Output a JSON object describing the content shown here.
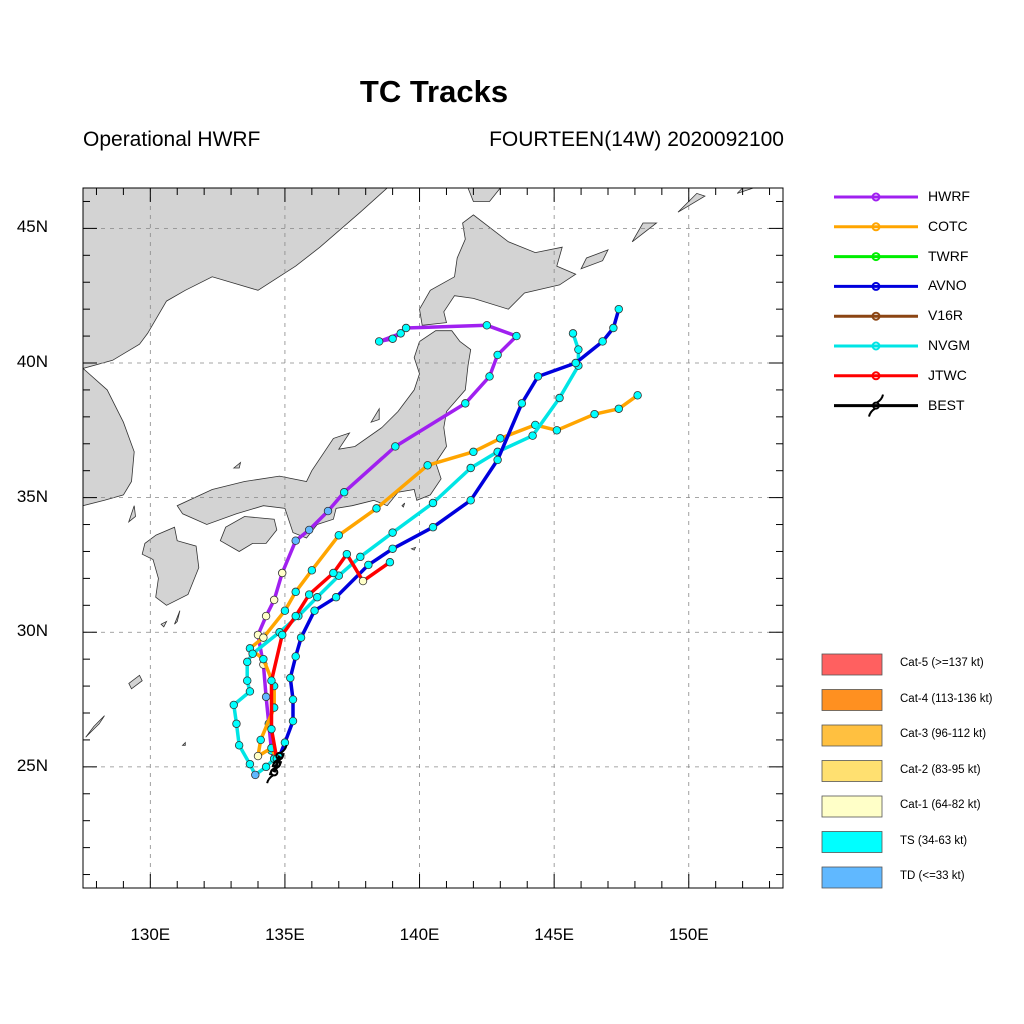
{
  "title": "TC Tracks",
  "subtitle_left": "Operational HWRF",
  "subtitle_right": "FOURTEEN(14W) 2020092100",
  "map": {
    "lon_range": [
      127.5,
      153.5
    ],
    "lat_range": [
      20.5,
      46.5
    ],
    "gridlines": "dashed",
    "x_ticks": [
      {
        "value": 130,
        "label": "130E"
      },
      {
        "value": 135,
        "label": "135E"
      },
      {
        "value": 140,
        "label": "140E"
      },
      {
        "value": 145,
        "label": "145E"
      },
      {
        "value": 150,
        "label": "150E"
      }
    ],
    "y_ticks": [
      {
        "value": 25,
        "label": "25N"
      },
      {
        "value": 30,
        "label": "30N"
      },
      {
        "value": 35,
        "label": "35N"
      },
      {
        "value": 40,
        "label": "40N"
      },
      {
        "value": 45,
        "label": "45N"
      }
    ],
    "land_color": "#d3d3d3",
    "ocean_color": "#ffffff"
  },
  "legend_models": [
    {
      "name": "HWRF",
      "color": "#a020f0"
    },
    {
      "name": "COTC",
      "color": "#ffa500"
    },
    {
      "name": "TWRF",
      "color": "#00ee00"
    },
    {
      "name": "AVNO",
      "color": "#0000dd"
    },
    {
      "name": "V16R",
      "color": "#8b4513"
    },
    {
      "name": "NVGM",
      "color": "#00e5e5"
    },
    {
      "name": "JTWC",
      "color": "#ff0000"
    },
    {
      "name": "BEST",
      "color": "#000000",
      "symbol": "tropical-cyclone-icon"
    }
  ],
  "legend_categories": [
    {
      "label": "Cat-5 (>=137 kt)",
      "color": "#ff6060"
    },
    {
      "label": "Cat-4 (113-136 kt)",
      "color": "#ff9020"
    },
    {
      "label": "Cat-3 (96-112 kt)",
      "color": "#ffc040"
    },
    {
      "label": "Cat-2 (83-95 kt)",
      "color": "#ffe070"
    },
    {
      "label": "Cat-1 (64-82 kt)",
      "color": "#ffffc8"
    },
    {
      "label": "TS (34-63 kt)",
      "color": "#00ffff"
    },
    {
      "label": "TD (<=33 kt)",
      "color": "#60b8ff"
    }
  ],
  "chart_data": {
    "type": "track-map",
    "title": "TC Tracks",
    "tracks": [
      {
        "model": "HWRF",
        "color": "#a020f0",
        "points": [
          [
            134.6,
            25.3
          ],
          [
            134.5,
            25.6
          ],
          [
            134.4,
            26.6
          ],
          [
            134.3,
            27.6
          ],
          [
            134.2,
            28.8
          ],
          [
            134.0,
            29.9
          ],
          [
            134.3,
            30.6
          ],
          [
            134.6,
            31.2
          ],
          [
            134.9,
            32.2
          ],
          [
            135.4,
            33.4
          ],
          [
            135.9,
            33.8
          ],
          [
            136.6,
            34.5
          ],
          [
            137.2,
            35.2
          ],
          [
            139.1,
            36.9
          ],
          [
            141.7,
            38.5
          ],
          [
            142.6,
            39.5
          ],
          [
            142.9,
            40.3
          ],
          [
            143.6,
            41.0
          ],
          [
            142.5,
            41.4
          ],
          [
            139.5,
            41.3
          ],
          [
            139.0,
            40.9
          ],
          [
            138.5,
            40.8
          ],
          [
            139.3,
            41.1
          ]
        ],
        "cats": [
          "TS",
          "TS",
          "TS",
          "TD",
          "Cat-1",
          "Cat-1",
          "Cat-1",
          "Cat-1",
          "Cat-1",
          "TD",
          "TD",
          "TD",
          "TS",
          "TS",
          "TS",
          "TS",
          "TS",
          "TS",
          "TS",
          "TS",
          "TS",
          "TS",
          "TS"
        ]
      },
      {
        "model": "COTC",
        "color": "#ffa500",
        "points": [
          [
            134.7,
            25.3
          ],
          [
            134.5,
            25.7
          ],
          [
            134.0,
            25.4
          ],
          [
            134.1,
            26.0
          ],
          [
            134.6,
            27.2
          ],
          [
            134.6,
            28.0
          ],
          [
            134.2,
            29.0
          ],
          [
            133.7,
            29.4
          ],
          [
            134.2,
            29.8
          ],
          [
            135.0,
            30.8
          ],
          [
            135.4,
            31.5
          ],
          [
            136.0,
            32.3
          ],
          [
            137.0,
            33.6
          ],
          [
            138.4,
            34.6
          ],
          [
            140.3,
            36.2
          ],
          [
            142.0,
            36.7
          ],
          [
            143.0,
            37.2
          ],
          [
            144.3,
            37.7
          ],
          [
            145.1,
            37.5
          ],
          [
            146.5,
            38.1
          ],
          [
            147.4,
            38.3
          ],
          [
            148.1,
            38.8
          ]
        ],
        "cats": [
          "TS",
          "TS",
          "Cat-1",
          "TS",
          "TS",
          "TS",
          "TS",
          "TS",
          "Cat-1",
          "TS",
          "TS",
          "TS",
          "TS",
          "TS",
          "TS",
          "TS",
          "TS",
          "TS",
          "TS",
          "TS",
          "TS",
          "TS"
        ]
      },
      {
        "model": "NVGM",
        "color": "#00e5e5",
        "points": [
          [
            134.6,
            25.3
          ],
          [
            134.3,
            25.0
          ],
          [
            133.9,
            24.7
          ],
          [
            133.7,
            25.1
          ],
          [
            133.3,
            25.8
          ],
          [
            133.2,
            26.6
          ],
          [
            133.1,
            27.3
          ],
          [
            133.7,
            27.8
          ],
          [
            133.6,
            28.2
          ],
          [
            133.6,
            28.9
          ],
          [
            133.8,
            29.2
          ],
          [
            134.8,
            30.0
          ],
          [
            135.5,
            30.6
          ],
          [
            136.2,
            31.3
          ],
          [
            137.0,
            32.1
          ],
          [
            137.8,
            32.8
          ],
          [
            139.0,
            33.7
          ],
          [
            140.5,
            34.8
          ],
          [
            141.9,
            36.1
          ],
          [
            142.9,
            36.7
          ],
          [
            144.2,
            37.3
          ],
          [
            145.2,
            38.7
          ],
          [
            145.9,
            39.9
          ],
          [
            145.9,
            40.5
          ],
          [
            145.7,
            41.1
          ]
        ],
        "cats": [
          "TS",
          "TS",
          "TD",
          "TS",
          "TS",
          "TS",
          "TS",
          "TS",
          "TS",
          "TS",
          "TS",
          "TS",
          "TS",
          "TS",
          "TS",
          "TS",
          "TS",
          "TS",
          "TS",
          "TS",
          "TS",
          "TS",
          "TS",
          "TS",
          "TS"
        ]
      },
      {
        "model": "AVNO",
        "color": "#0000dd",
        "points": [
          [
            134.8,
            25.4
          ],
          [
            135.0,
            25.9
          ],
          [
            135.3,
            26.7
          ],
          [
            135.3,
            27.5
          ],
          [
            135.2,
            28.3
          ],
          [
            135.4,
            29.1
          ],
          [
            135.6,
            29.8
          ],
          [
            136.1,
            30.8
          ],
          [
            136.9,
            31.3
          ],
          [
            138.1,
            32.5
          ],
          [
            139.0,
            33.1
          ],
          [
            140.5,
            33.9
          ],
          [
            141.9,
            34.9
          ],
          [
            142.9,
            36.4
          ],
          [
            143.8,
            38.5
          ],
          [
            144.4,
            39.5
          ],
          [
            145.8,
            40.0
          ],
          [
            146.8,
            40.8
          ],
          [
            147.2,
            41.3
          ],
          [
            147.4,
            42.0
          ]
        ],
        "cats": [
          "TS",
          "TS",
          "TS",
          "TS",
          "TS",
          "TS",
          "TS",
          "TS",
          "TS",
          "TS",
          "TS",
          "TS",
          "TS",
          "TS",
          "TS",
          "TS",
          "TS",
          "TS",
          "TS",
          "TS"
        ]
      },
      {
        "model": "JTWC",
        "color": "#ff0000",
        "points": [
          [
            134.7,
            25.3
          ],
          [
            134.5,
            26.4
          ],
          [
            134.5,
            28.2
          ],
          [
            134.9,
            29.9
          ],
          [
            135.4,
            30.6
          ],
          [
            135.9,
            31.4
          ],
          [
            136.8,
            32.2
          ],
          [
            137.3,
            32.9
          ],
          [
            137.9,
            31.9
          ],
          [
            138.9,
            32.6
          ]
        ],
        "cats": [
          "TS",
          "TS",
          "TS",
          "TS",
          "TS",
          "TS",
          "TS",
          "TS",
          "Cat-1",
          "TS"
        ]
      }
    ],
    "best_track": {
      "color": "#000000",
      "points": [
        [
          134.6,
          24.8
        ],
        [
          134.7,
          25.1
        ],
        [
          134.8,
          25.4
        ]
      ]
    }
  }
}
